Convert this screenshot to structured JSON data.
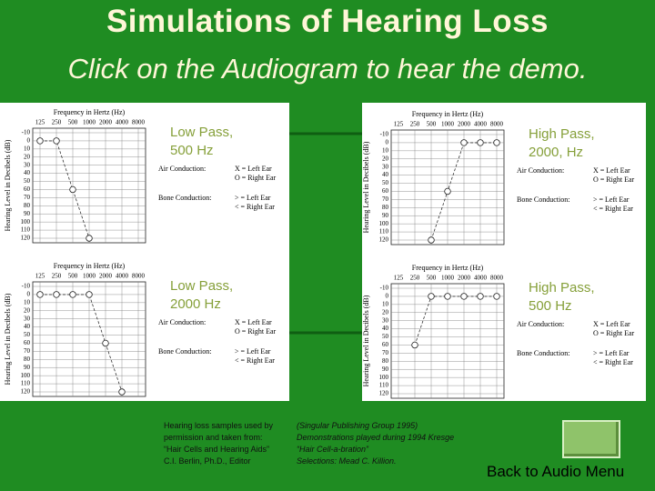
{
  "title": "Simulations of Hearing Loss",
  "subtitle": "Click on the Audiogram to hear the demo.",
  "audiograms": [
    {
      "label": [
        "Low Pass,",
        "500 Hz"
      ],
      "x_title": "Frequency in Hertz (Hz)",
      "y_title": "Hearing Level in Decibels (dB)",
      "frequencies": [
        "125",
        "250",
        "500",
        "1000",
        "2000",
        "4000",
        "8000"
      ],
      "levels": [
        -10,
        0,
        10,
        20,
        30,
        40,
        50,
        60,
        70,
        80,
        90,
        100,
        110,
        120
      ],
      "thresholds": [
        0,
        0,
        60,
        120,
        null,
        null,
        null
      ],
      "legend": [
        "Air Conduction:",
        "X = Left Ear",
        "O = Right Ear",
        "Bone Conduction:",
        "> = Left Ear",
        "< = Right Ear"
      ]
    },
    {
      "label": [
        "High Pass,",
        "2000, Hz"
      ],
      "x_title": "Frequency in Hertz (Hz)",
      "y_title": "Hearing Level in Decibels (dB)",
      "frequencies": [
        "125",
        "250",
        "500",
        "1000",
        "2000",
        "4000",
        "8000"
      ],
      "levels": [
        -10,
        0,
        10,
        20,
        30,
        40,
        50,
        60,
        70,
        80,
        90,
        100,
        110,
        120
      ],
      "thresholds": [
        null,
        null,
        120,
        60,
        0,
        0,
        0
      ],
      "legend": [
        "Air Conduction:",
        "X = Left Ear",
        "O = Right Ear",
        "Bone Conduction:",
        "> = Left Ear",
        "< = Right Ear"
      ]
    },
    {
      "label": [
        "Low Pass,",
        "2000 Hz"
      ],
      "x_title": "Frequency in Hertz (Hz)",
      "y_title": "Hearing Level in Decibels (dB)",
      "frequencies": [
        "125",
        "250",
        "500",
        "1000",
        "2000",
        "4000",
        "8000"
      ],
      "levels": [
        -10,
        0,
        10,
        20,
        30,
        40,
        50,
        60,
        70,
        80,
        90,
        100,
        110,
        120
      ],
      "thresholds": [
        0,
        0,
        0,
        0,
        60,
        120,
        null
      ],
      "legend": [
        "Air Conduction:",
        "X = Left Ear",
        "O = Right Ear",
        "Bone Conduction:",
        "> = Left Ear",
        "< = Right Ear"
      ]
    },
    {
      "label": [
        "High Pass,",
        "500 Hz"
      ],
      "x_title": "Frequency in Hertz (Hz)",
      "y_title": "Hearing Level in Decibels (dB)",
      "frequencies": [
        "125",
        "250",
        "500",
        "1000",
        "2000",
        "4000",
        "8000"
      ],
      "levels": [
        -10,
        0,
        10,
        20,
        30,
        40,
        50,
        60,
        70,
        80,
        90,
        100,
        110,
        120
      ],
      "thresholds": [
        null,
        60,
        0,
        0,
        0,
        0,
        0
      ],
      "legend": [
        "Air Conduction:",
        "X = Left Ear",
        "O = Right Ear",
        "Bone Conduction:",
        "> = Left Ear",
        "< = Right Ear"
      ]
    }
  ],
  "footer": {
    "left": [
      "Hearing loss samples used by",
      "permission and taken from:",
      "“Hair Cells and Hearing Aids”",
      "C.I. Berlin, Ph.D., Editor"
    ],
    "right": [
      "(Singular Publishing Group 1995)",
      "Demonstrations played during 1994 Kresge",
      "“Hair Cell-a-bration”",
      "Selections: Mead C. Killion."
    ]
  },
  "button": "Back to Audio Menu"
}
